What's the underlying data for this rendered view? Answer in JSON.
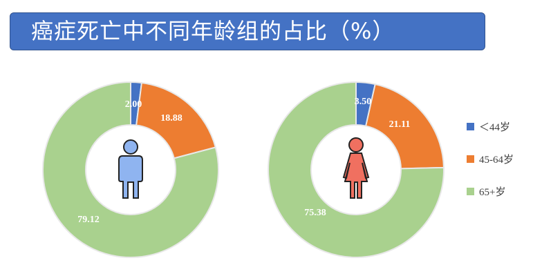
{
  "title": "癌症死亡中不同年龄组的占比（%）",
  "chart_data": [
    {
      "type": "pie",
      "figure": "male",
      "categories": [
        "＜44岁",
        "45-64岁",
        "65+岁"
      ],
      "values": [
        2.0,
        18.88,
        79.12
      ],
      "value_labels": [
        "2.00",
        "18.88",
        "79.12"
      ]
    },
    {
      "type": "pie",
      "figure": "female",
      "categories": [
        "＜44岁",
        "45-64岁",
        "65+岁"
      ],
      "values": [
        3.5,
        21.11,
        75.38
      ],
      "value_labels": [
        "3.50",
        "21.11",
        "75.38"
      ]
    }
  ],
  "legend": {
    "placement": "right",
    "items": [
      {
        "label": "＜44岁",
        "color": "#4472c4"
      },
      {
        "label": "45-64岁",
        "color": "#ed7d31"
      },
      {
        "label": "65+岁",
        "color": "#a9d18e"
      }
    ]
  },
  "colors": {
    "segment_stroke": "#e8e8e8",
    "male_figure": "#8fb4f0",
    "female_figure": "#f07060",
    "figure_outline": "#222222",
    "title_bg": "#4472c4"
  },
  "icons": [
    "male-person-icon",
    "female-person-icon"
  ]
}
